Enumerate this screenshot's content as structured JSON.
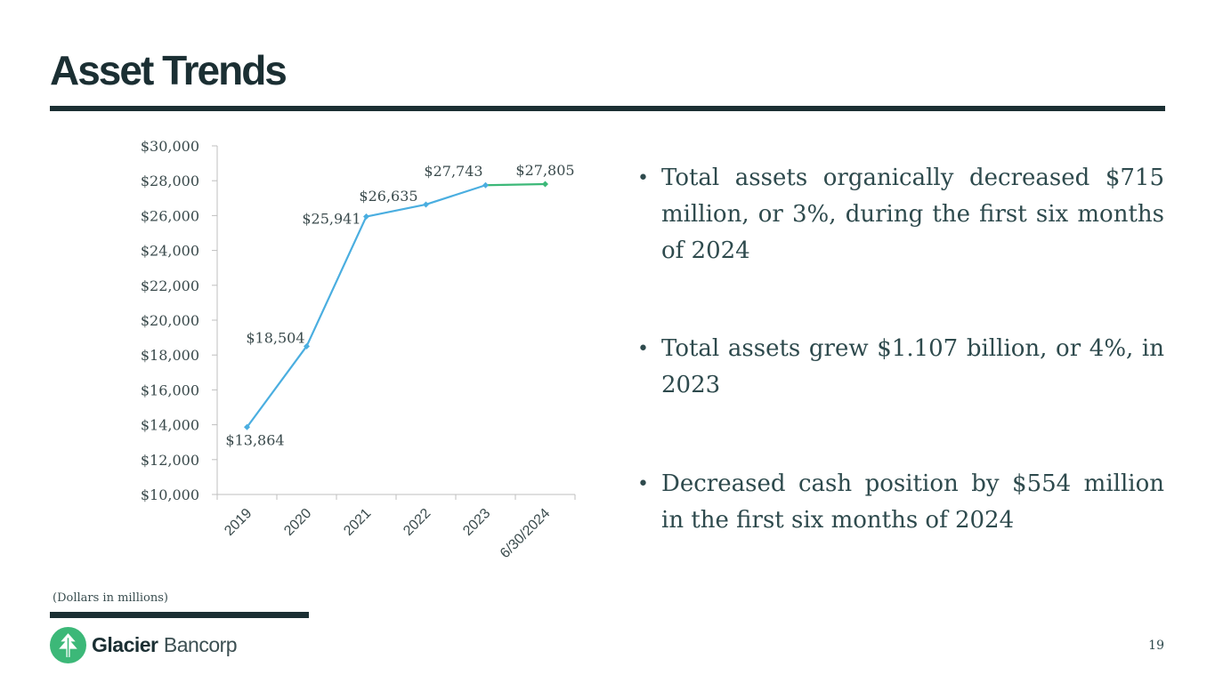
{
  "header": {
    "title": "Asset Trends"
  },
  "bullets": [
    "Total assets organically decreased $715 million, or 3%, during the first six months of 2024",
    "Total assets grew $1.107 billion, or 4%, in 2023",
    "Decreased cash position by $554  million in the first six months of 2024"
  ],
  "footer": {
    "note": "(Dollars in millions)",
    "brand_primary": "Glacier",
    "brand_secondary": "Bancorp",
    "page_number": "19"
  },
  "colors": {
    "line": "#4aaee0",
    "line_last": "#3cb878",
    "dark": "#1b2f33",
    "logo_green": "#3cb878"
  },
  "chart_data": {
    "type": "line",
    "title": "",
    "xlabel": "",
    "ylabel": "",
    "categories": [
      "2019",
      "2020",
      "2021",
      "2022",
      "2023",
      "6/30/2024"
    ],
    "values": [
      13864,
      18504,
      25941,
      26635,
      27743,
      27805
    ],
    "data_labels": [
      "$13,864",
      "$18,504",
      "$25,941",
      "$26,635",
      "$27,743",
      "$27,805"
    ],
    "y_ticks": [
      10000,
      12000,
      14000,
      16000,
      18000,
      20000,
      22000,
      24000,
      26000,
      28000,
      30000
    ],
    "y_tick_labels": [
      "$10,000",
      "$12,000",
      "$14,000",
      "$16,000",
      "$18,000",
      "$20,000",
      "$22,000",
      "$24,000",
      "$26,000",
      "$28,000",
      "$30,000"
    ],
    "ylim": [
      10000,
      30000
    ],
    "grid": false,
    "legend": "none"
  }
}
